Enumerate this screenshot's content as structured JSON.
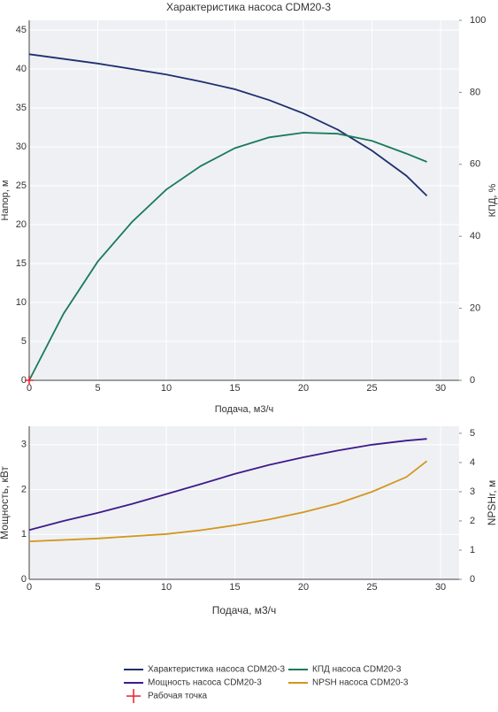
{
  "chart_data": [
    {
      "type": "line",
      "title": "Характеристика насоса CDM20-3",
      "xlabel": "Подача, м3/ч",
      "ylabel": "Напор, м",
      "y2label": "КПД, %",
      "xlim": [
        0,
        31.35
      ],
      "xticks": [
        0,
        5,
        10,
        15,
        20,
        25,
        30
      ],
      "ylim": [
        0,
        46.25
      ],
      "yticks": [
        0,
        5,
        10,
        15,
        20,
        25,
        30,
        35,
        40,
        45
      ],
      "y2lim": [
        0,
        100
      ],
      "y2ticks": [
        0,
        20,
        40,
        60,
        80,
        100
      ],
      "grid": true,
      "series": [
        {
          "name": "Характеристика насоса CDM20-3",
          "color": "#1f2f6e",
          "x": [
            0,
            5,
            10,
            12.5,
            15,
            17.5,
            20,
            22.5,
            25,
            27.5,
            29
          ],
          "values": [
            41.9,
            40.7,
            39.3,
            38.4,
            37.4,
            36,
            34.3,
            32.2,
            29.5,
            26.3,
            23.7
          ]
        },
        {
          "name": "КПД насоса CDM20-3",
          "color": "#1a7a5a",
          "axis": "y2",
          "x": [
            0,
            2.5,
            5,
            7.5,
            10,
            12.5,
            15,
            17.5,
            20,
            22.5,
            25,
            27.5,
            29
          ],
          "values": [
            0,
            18.5,
            33,
            44,
            53,
            59.5,
            64.5,
            67.5,
            68.8,
            68.5,
            66.5,
            63,
            60.7
          ]
        },
        {
          "name": "Рабочая точка",
          "color": "#e8202a",
          "marker": "cross",
          "x": [
            0
          ],
          "values": [
            0
          ]
        }
      ]
    },
    {
      "type": "line",
      "xlabel": "Подача, м3/ч",
      "ylabel": "Мощность, кВт",
      "y2label": "NPSHr, м",
      "xlim": [
        0,
        31.35
      ],
      "xticks": [
        0,
        5,
        10,
        15,
        20,
        25,
        30
      ],
      "ylim": [
        0,
        3.41
      ],
      "yticks": [
        0,
        1,
        2,
        3
      ],
      "y2lim": [
        0,
        5.24
      ],
      "y2ticks": [
        0,
        1,
        2,
        3,
        4,
        5
      ],
      "grid": true,
      "series": [
        {
          "name": "Мощность насоса CDM20-3",
          "color": "#3f1a8a",
          "x": [
            0,
            2.5,
            5,
            7.5,
            10,
            12.5,
            15,
            17.5,
            20,
            22.5,
            25,
            27.5,
            29
          ],
          "values": [
            1.1,
            1.3,
            1.48,
            1.68,
            1.9,
            2.12,
            2.35,
            2.55,
            2.72,
            2.87,
            3.0,
            3.09,
            3.13
          ]
        },
        {
          "name": "NPSH насоса CDM20-3",
          "color": "#d4961c",
          "axis": "y2",
          "x": [
            0,
            5,
            10,
            12.5,
            15,
            17.5,
            20,
            22.5,
            25,
            27.5,
            29
          ],
          "values": [
            1.3,
            1.4,
            1.55,
            1.68,
            1.85,
            2.05,
            2.3,
            2.6,
            3.0,
            3.5,
            4.05
          ]
        }
      ]
    }
  ]
}
